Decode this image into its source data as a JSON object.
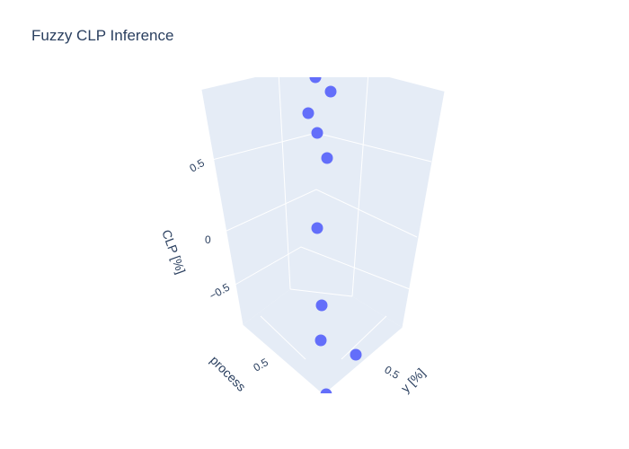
{
  "chart_data": {
    "type": "scatter3d",
    "title": "Fuzzy CLP Inference",
    "axes": {
      "z": {
        "title": "CLP [%]",
        "ticks": [
          "0.5",
          "0",
          "−0.5"
        ]
      },
      "x": {
        "title": "process",
        "ticks": [
          "0.5"
        ]
      },
      "y": {
        "title": "y [%]",
        "ticks": [
          "0.5"
        ]
      }
    },
    "points": [
      {
        "clp": 1.05
      },
      {
        "clp": 0.93
      },
      {
        "clp": 0.85
      },
      {
        "clp": 0.77
      },
      {
        "clp": 0.66
      },
      {
        "clp": 0.12
      },
      {
        "clp": -0.55
      },
      {
        "clp": -0.78
      },
      {
        "clp": -0.95
      },
      {
        "clp": -1.15
      }
    ]
  }
}
